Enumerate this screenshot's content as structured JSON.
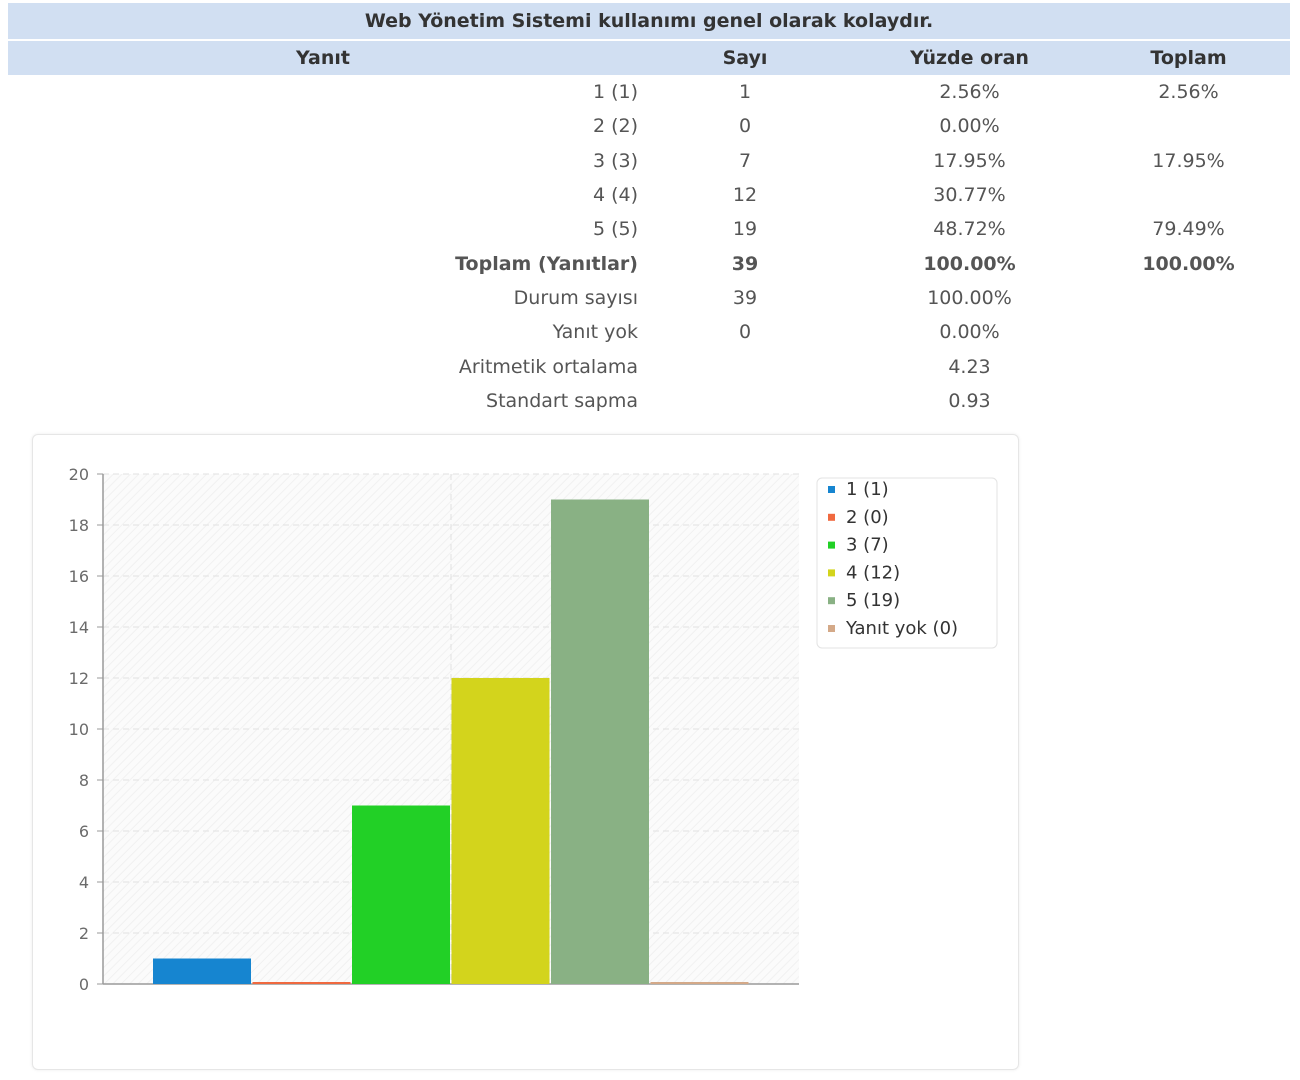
{
  "table": {
    "title": "Web Yönetim Sistemi kullanımı genel olarak kolaydır.",
    "headers": [
      "Yanıt",
      "Sayı",
      "Yüzde oran",
      "Toplam"
    ],
    "rows": [
      {
        "label": "1 (1)",
        "count": "1",
        "percent": "2.56%",
        "total": "2.56%",
        "bold": false
      },
      {
        "label": "2 (2)",
        "count": "0",
        "percent": "0.00%",
        "total": "",
        "bold": false
      },
      {
        "label": "3 (3)",
        "count": "7",
        "percent": "17.95%",
        "total": "17.95%",
        "bold": false
      },
      {
        "label": "4 (4)",
        "count": "12",
        "percent": "30.77%",
        "total": "",
        "bold": false
      },
      {
        "label": "5 (5)",
        "count": "19",
        "percent": "48.72%",
        "total": "79.49%",
        "bold": false
      },
      {
        "label": "Toplam (Yanıtlar)",
        "count": "39",
        "percent": "100.00%",
        "total": "100.00%",
        "bold": true
      },
      {
        "label": "Durum sayısı",
        "count": "39",
        "percent": "100.00%",
        "total": "",
        "bold": false
      },
      {
        "label": "Yanıt yok",
        "count": "0",
        "percent": "0.00%",
        "total": "",
        "bold": false
      },
      {
        "label": "Aritmetik ortalama",
        "count": "",
        "percent": "4.23",
        "total": "",
        "bold": false
      },
      {
        "label": "Standart sapma",
        "count": "",
        "percent": "0.93",
        "total": "",
        "bold": false
      }
    ]
  },
  "chart_data": {
    "type": "bar",
    "categories": [
      "1",
      "2",
      "3",
      "4",
      "5",
      "Yanıt yok"
    ],
    "values": [
      1,
      0,
      7,
      12,
      19,
      0
    ],
    "colors": [
      "#1685d0",
      "#f0693f",
      "#22d026",
      "#d3d41c",
      "#89b184",
      "#d4a988"
    ],
    "legend": [
      "1 (1)",
      "2 (0)",
      "3 (7)",
      "4 (12)",
      "5 (19)",
      "Yanıt yok (0)"
    ],
    "legend_position": "top-right",
    "ylim": [
      0,
      20
    ],
    "yticks": [
      0,
      2,
      4,
      6,
      8,
      10,
      12,
      14,
      16,
      18,
      20
    ],
    "grid": true
  }
}
